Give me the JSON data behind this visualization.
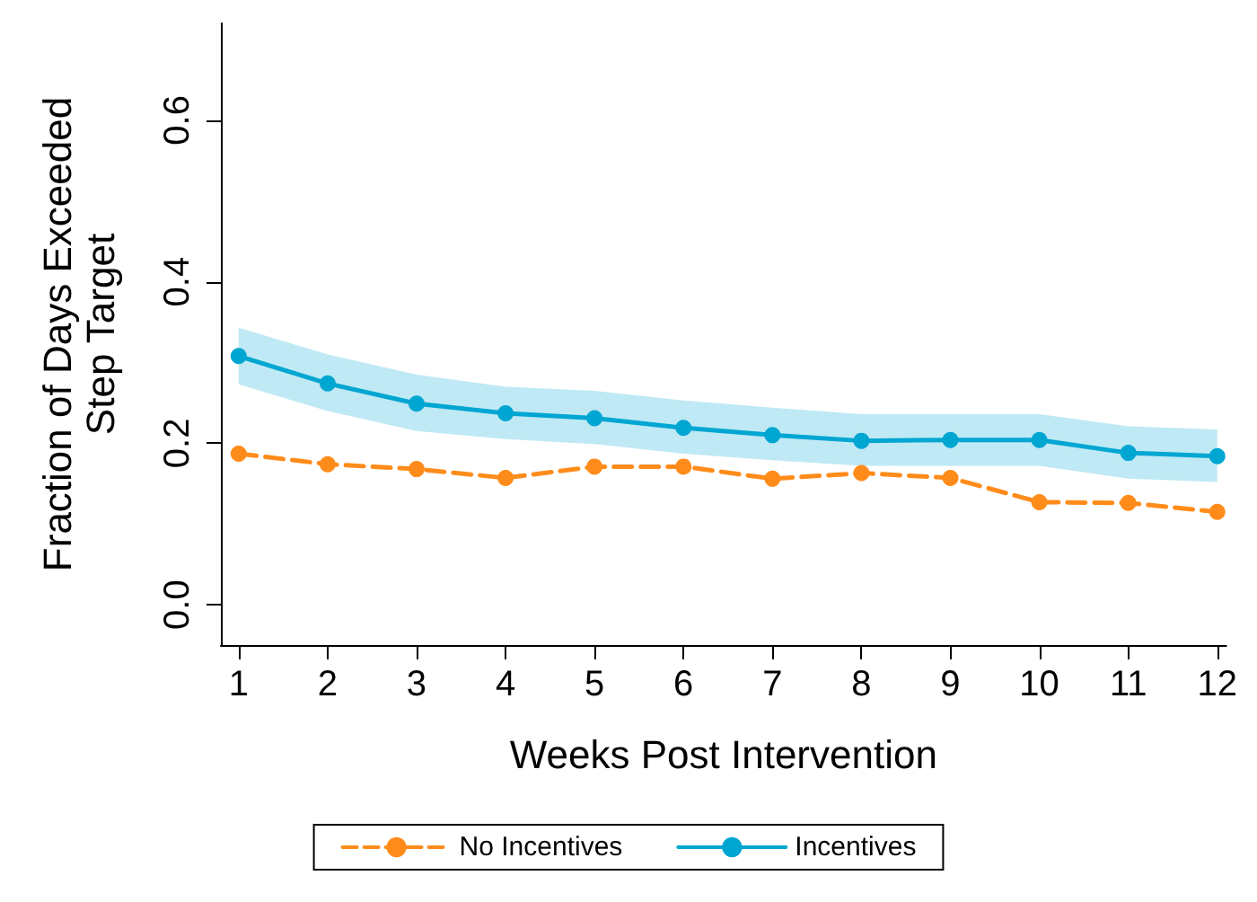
{
  "chart_data": {
    "type": "line",
    "xlabel": "Weeks Post Intervention",
    "ylabel": "Fraction of Days Exceeded\nStep Target",
    "x": [
      1,
      2,
      3,
      4,
      5,
      6,
      7,
      8,
      9,
      10,
      11,
      12
    ],
    "xlim": [
      0.8,
      12.1
    ],
    "xticks": [
      1,
      2,
      3,
      4,
      5,
      6,
      7,
      8,
      9,
      10,
      11,
      12
    ],
    "ylim": [
      -0.05,
      0.72
    ],
    "yticks": [
      {
        "value": 0,
        "label": "0.0"
      },
      {
        "value": 0.2,
        "label": "0.2"
      },
      {
        "value": 0.4,
        "label": "0.4"
      },
      {
        "value": 0.6,
        "label": "0.6"
      }
    ],
    "grid": false,
    "legend": "bottom",
    "marker": "circle",
    "series": [
      {
        "name": "No Incentives",
        "color": "#ff8c1a",
        "line_style": "dashed",
        "values": [
          0.187,
          0.174,
          0.168,
          0.157,
          0.171,
          0.171,
          0.156,
          0.163,
          0.157,
          0.127,
          0.126,
          0.115
        ]
      },
      {
        "name": "Incentives",
        "color": "#00a6d2",
        "line_style": "solid",
        "values": [
          0.308,
          0.274,
          0.249,
          0.237,
          0.231,
          0.219,
          0.21,
          0.203,
          0.204,
          0.204,
          0.188,
          0.184
        ],
        "lower": [
          0.273,
          0.24,
          0.215,
          0.205,
          0.199,
          0.187,
          0.179,
          0.172,
          0.172,
          0.172,
          0.156,
          0.152
        ],
        "upper": [
          0.343,
          0.31,
          0.285,
          0.27,
          0.265,
          0.253,
          0.244,
          0.236,
          0.236,
          0.236,
          0.221,
          0.217
        ]
      }
    ]
  }
}
